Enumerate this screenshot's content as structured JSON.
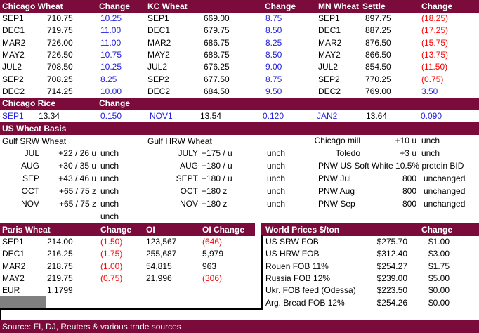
{
  "colors": {
    "header_bg": "#7a0b3a",
    "header_text": "#ffffff",
    "positive_change": "#2222dd",
    "negative_change": "#ff0000",
    "body_text": "#000000",
    "selected_cell_gray": "#808080"
  },
  "futures_tables": {
    "chicago": {
      "title": "Chicago Wheat",
      "change_header": "Change",
      "rows": [
        {
          "month": "SEP1",
          "settle": "710.75",
          "change": "10.25"
        },
        {
          "month": "DEC1",
          "settle": "719.75",
          "change": "11.00"
        },
        {
          "month": "MAR2",
          "settle": "726.00",
          "change": "11.00"
        },
        {
          "month": "MAY2",
          "settle": "726.50",
          "change": "10.75"
        },
        {
          "month": "JUL2",
          "settle": "708.50",
          "change": "10.25"
        },
        {
          "month": "SEP2",
          "settle": "708.25",
          "change": "8.25"
        },
        {
          "month": "DEC2",
          "settle": "714.25",
          "change": "10.00"
        }
      ]
    },
    "kc": {
      "title": "KC Wheat",
      "change_header": "Change",
      "rows": [
        {
          "month": "SEP1",
          "settle": "669.00",
          "change": "8.75"
        },
        {
          "month": "DEC1",
          "settle": "679.75",
          "change": "8.50"
        },
        {
          "month": "MAR2",
          "settle": "686.75",
          "change": "8.25"
        },
        {
          "month": "MAY2",
          "settle": "688.75",
          "change": "8.50"
        },
        {
          "month": "JUL2",
          "settle": "676.25",
          "change": "9.00"
        },
        {
          "month": "SEP2",
          "settle": "677.50",
          "change": "8.75"
        },
        {
          "month": "DEC2",
          "settle": "684.50",
          "change": "9.50"
        }
      ]
    },
    "mn": {
      "title": "MN Wheat",
      "settle_header": "Settle",
      "change_header": "Change",
      "rows": [
        {
          "month": "SEP1",
          "settle": "897.75",
          "change": "(18.25)"
        },
        {
          "month": "DEC1",
          "settle": "887.25",
          "change": "(17.25)"
        },
        {
          "month": "MAR2",
          "settle": "876.50",
          "change": "(15.75)"
        },
        {
          "month": "MAY2",
          "settle": "866.50",
          "change": "(13.75)"
        },
        {
          "month": "JUL2",
          "settle": "854.50",
          "change": "(11.50)"
        },
        {
          "month": "SEP2",
          "settle": "770.25",
          "change": "(0.75)"
        },
        {
          "month": "DEC2",
          "settle": "769.00",
          "change": "3.50"
        }
      ]
    }
  },
  "rice": {
    "title": "Chicago Rice",
    "change_header": "Change",
    "contracts": [
      {
        "month": "SEP1",
        "price": "13.34",
        "change": "0.150"
      },
      {
        "month": "NOV1",
        "price": "13.54",
        "change": "0.120"
      },
      {
        "month": "JAN2",
        "price": "13.64",
        "change": "0.090"
      }
    ]
  },
  "basis": {
    "title": "US Wheat Basis",
    "gulf_srw": {
      "title": "Gulf SRW Wheat",
      "rows": [
        {
          "month": "JUL",
          "bid": "+22 / 26 u",
          "status": "unch"
        },
        {
          "month": "AUG",
          "bid": "+30 / 35 u",
          "status": "unch"
        },
        {
          "month": "SEP",
          "bid": "+43 / 46 u",
          "status": "unch"
        },
        {
          "month": "OCT",
          "bid": "+65 / 75 z",
          "status": "unch"
        },
        {
          "month": "NOV",
          "bid": "+65 / 75 z",
          "status": "unch"
        },
        {
          "month": "",
          "bid": "",
          "status": "unch"
        }
      ]
    },
    "gulf_hrw": {
      "title": "Gulf HRW Wheat",
      "rows": [
        {
          "month": "JULY",
          "bid": "+175 / u",
          "status": "unch"
        },
        {
          "month": "AUG",
          "bid": "+180 / u",
          "status": "unch"
        },
        {
          "month": "SEPT",
          "bid": "+180 / u",
          "status": "unch"
        },
        {
          "month": "OCT",
          "bid": "+180 z",
          "status": "unch"
        },
        {
          "month": "NOV",
          "bid": "+180 z",
          "status": "unch"
        }
      ]
    },
    "domestic": {
      "rows": [
        {
          "label": "Chicago mill",
          "value": "+10 u",
          "status": "unch"
        },
        {
          "label": "Toledo",
          "value": "+3 u",
          "status": "unch"
        },
        {
          "label": "PNW US Soft White 10.5% protein BID",
          "value": "",
          "status": ""
        },
        {
          "label": "PNW Jul",
          "value": "800",
          "status": "unchanged"
        },
        {
          "label": "PNW Aug",
          "value": "800",
          "status": "unchanged"
        },
        {
          "label": "PNW Sep",
          "value": "800",
          "status": "unchanged"
        }
      ]
    }
  },
  "paris": {
    "title": "Paris Wheat",
    "change_header": "Change",
    "oi_header": "OI",
    "oi_change_header": "OI Change",
    "rows": [
      {
        "month": "SEP1",
        "settle": "214.00",
        "change": "(1.50)",
        "oi": "123,567",
        "oi_change": "(646)"
      },
      {
        "month": "DEC1",
        "settle": "216.25",
        "change": "(1.75)",
        "oi": "255,687",
        "oi_change": "5,979"
      },
      {
        "month": "MAR2",
        "settle": "218.75",
        "change": "(1.00)",
        "oi": "54,815",
        "oi_change": "963"
      },
      {
        "month": "MAY2",
        "settle": "219.75",
        "change": "(0.75)",
        "oi": "21,996",
        "oi_change": "(306)"
      },
      {
        "month": "EUR",
        "settle": "1.1799",
        "change": "",
        "oi": "",
        "oi_change": ""
      }
    ]
  },
  "world_prices": {
    "title": "World Prices $/ton",
    "change_header": "Change",
    "rows": [
      {
        "label": "US SRW FOB",
        "price": "$275.70",
        "change": "$1.00"
      },
      {
        "label": "US HRW FOB",
        "price": "$312.40",
        "change": "$3.00"
      },
      {
        "label": "Rouen FOB 11%",
        "price": "$254.27",
        "change": "$1.75"
      },
      {
        "label": "Russia FOB 12%",
        "price": "$239.00",
        "change": "$5.00"
      },
      {
        "label": "Ukr. FOB feed (Odessa)",
        "price": "$223.50",
        "change": "$0.00"
      },
      {
        "label": "Arg. Bread FOB 12%",
        "price": "$254.26",
        "change": "$0.00"
      }
    ]
  },
  "source_bar": {
    "text": "Source: FI, DJ, Reuters & various trade sources"
  }
}
